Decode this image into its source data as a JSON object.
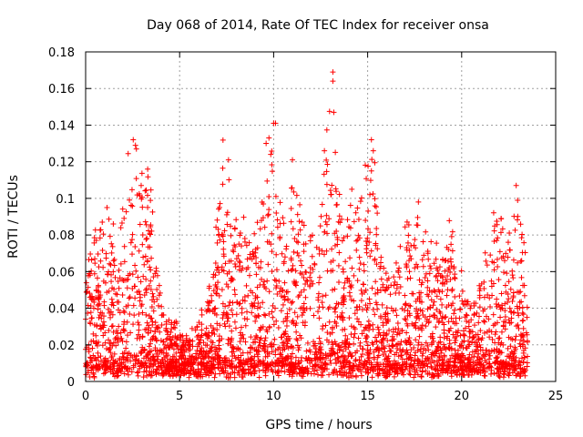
{
  "chart_data": {
    "type": "scatter",
    "title": "Day 068 of 2014, Rate Of TEC Index for receiver onsa",
    "xlabel": "GPS time / hours",
    "ylabel": "ROTI / TECUs",
    "xlim": [
      0,
      25
    ],
    "ylim": [
      0,
      0.18
    ],
    "x_ticks": [
      0,
      5,
      10,
      15,
      20,
      25
    ],
    "x_tick_labels": [
      "0",
      "5",
      "10",
      "15",
      "20",
      "25"
    ],
    "y_ticks": [
      0,
      0.02,
      0.04,
      0.06,
      0.08,
      0.1,
      0.12,
      0.14,
      0.16,
      0.18
    ],
    "y_tick_labels": [
      "0",
      "0.02",
      "0.04",
      "0.06",
      "0.08",
      "0.1",
      "0.12",
      "0.14",
      "0.16",
      "0.18"
    ],
    "grid": true,
    "marker": "+",
    "colors": {
      "series": "#ff0000",
      "grid": "#a0a0a0",
      "axis": "#000000"
    },
    "series": [
      {
        "name": "ROTI",
        "envelope": {
          "x": [
            0.0,
            0.5,
            0.8,
            1.2,
            1.7,
            2.3,
            2.6,
            3.0,
            3.4,
            3.8,
            4.2,
            4.7,
            5.2,
            5.8,
            6.3,
            6.8,
            7.3,
            7.7,
            8.2,
            8.8,
            9.4,
            9.8,
            10.2,
            10.7,
            11.1,
            11.6,
            12.1,
            12.6,
            13.0,
            13.3,
            13.8,
            14.3,
            14.8,
            15.3,
            15.7,
            16.2,
            16.8,
            17.3,
            17.7,
            18.2,
            18.7,
            19.3,
            19.7,
            20.3,
            20.8,
            21.3,
            21.8,
            22.3,
            22.7,
            23.0,
            23.3,
            23.5
          ],
          "y": [
            0.06,
            0.08,
            0.1,
            0.085,
            0.07,
            0.12,
            0.13,
            0.11,
            0.115,
            0.065,
            0.03,
            0.03,
            0.02,
            0.025,
            0.035,
            0.065,
            0.12,
            0.1,
            0.085,
            0.075,
            0.095,
            0.14,
            0.1,
            0.09,
            0.12,
            0.09,
            0.085,
            0.11,
            0.17,
            0.12,
            0.09,
            0.1,
            0.12,
            0.13,
            0.07,
            0.05,
            0.07,
            0.09,
            0.1,
            0.075,
            0.065,
            0.085,
            0.06,
            0.04,
            0.045,
            0.07,
            0.09,
            0.085,
            0.08,
            0.105,
            0.08,
            0.05
          ]
        },
        "outliers": [
          {
            "x": 2.65,
            "y": 0.129
          },
          {
            "x": 2.7,
            "y": 0.127
          },
          {
            "x": 3.3,
            "y": 0.116
          },
          {
            "x": 7.6,
            "y": 0.121
          },
          {
            "x": 9.6,
            "y": 0.13
          },
          {
            "x": 9.75,
            "y": 0.133
          },
          {
            "x": 10.0,
            "y": 0.141
          },
          {
            "x": 10.1,
            "y": 0.141
          },
          {
            "x": 11.0,
            "y": 0.121
          },
          {
            "x": 12.7,
            "y": 0.126
          },
          {
            "x": 13.15,
            "y": 0.169
          },
          {
            "x": 13.15,
            "y": 0.164
          },
          {
            "x": 13.2,
            "y": 0.147
          },
          {
            "x": 15.2,
            "y": 0.132
          },
          {
            "x": 15.3,
            "y": 0.126
          },
          {
            "x": 15.2,
            "y": 0.115
          },
          {
            "x": 17.7,
            "y": 0.098
          },
          {
            "x": 22.9,
            "y": 0.107
          },
          {
            "x": 22.1,
            "y": 0.089
          }
        ]
      }
    ]
  }
}
